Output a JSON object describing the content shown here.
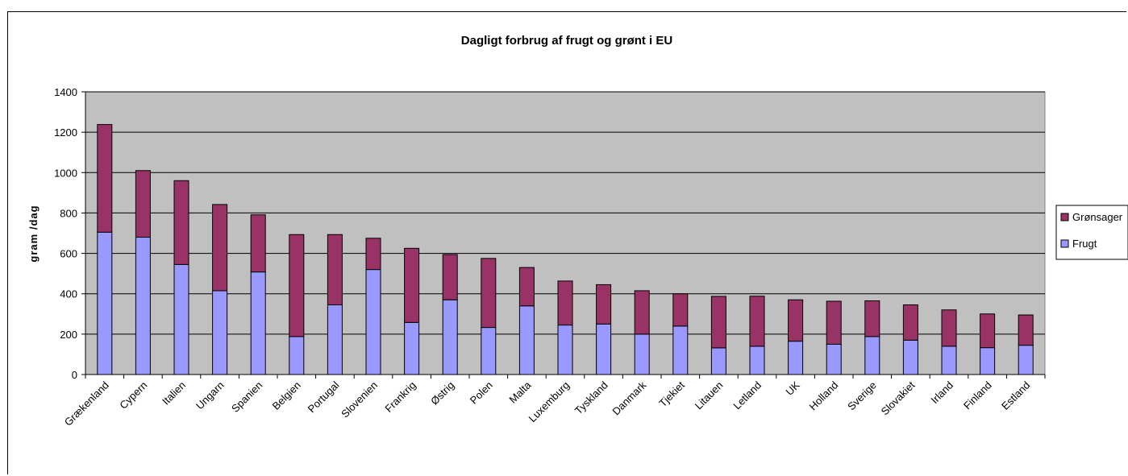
{
  "chart_data": {
    "type": "bar",
    "stacked": true,
    "title": "Dagligt forbrug af frugt og grønt i EU",
    "xlabel": "",
    "ylabel": "gram  /dag",
    "ylim": [
      0,
      1400
    ],
    "yticks": [
      0,
      200,
      400,
      600,
      800,
      1000,
      1200,
      1400
    ],
    "grid": true,
    "plot_background": "#c0c0c0",
    "legend_position": "right",
    "categories": [
      "Grækenland",
      "Cypern",
      "Italien",
      "Ungarn",
      "Spanien",
      "Belgien",
      "Portugal",
      "Slovenien",
      "Frankrig",
      "Østrig",
      "Polen",
      "Malta",
      "Luxemburg",
      "Tyskland",
      "Danmark",
      "Tjekiet",
      "Litauen",
      "Letland",
      "UK",
      "Holland",
      "Sverige",
      "Slovakiet",
      "Irland",
      "Finland",
      "Estland"
    ],
    "series": [
      {
        "name": "Frugt",
        "color": "#9999ff",
        "values": [
          705,
          680,
          545,
          415,
          508,
          188,
          345,
          520,
          258,
          370,
          233,
          340,
          245,
          250,
          200,
          240,
          132,
          140,
          165,
          150,
          188,
          170,
          140,
          133,
          145
        ]
      },
      {
        "name": "Grønsager",
        "color": "#993366",
        "values": [
          533,
          330,
          415,
          427,
          283,
          505,
          348,
          155,
          367,
          224,
          342,
          190,
          218,
          195,
          215,
          160,
          255,
          248,
          205,
          213,
          177,
          175,
          180,
          167,
          150
        ]
      }
    ]
  }
}
